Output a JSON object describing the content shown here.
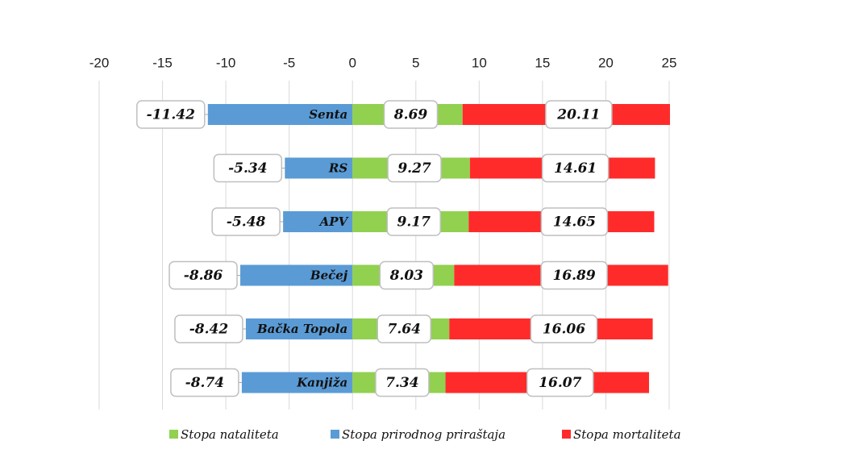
{
  "chart_data": {
    "type": "bar",
    "orientation": "horizontal",
    "categories": [
      "Senta",
      "RS",
      "APV",
      "Bečej",
      "Bačka Topola",
      "Kanjiža"
    ],
    "series": [
      {
        "name": "Stopa nataliteta",
        "color": "#92d050",
        "values": [
          8.69,
          9.27,
          9.17,
          8.03,
          7.64,
          7.34
        ]
      },
      {
        "name": "Stopa prirodnog priraštaja",
        "color": "#5b9bd5",
        "values": [
          -11.42,
          -5.34,
          -5.48,
          -8.86,
          -8.42,
          -8.74
        ]
      },
      {
        "name": "Stopa mortaliteta",
        "color": "#ff2b2b",
        "values": [
          20.11,
          14.61,
          14.65,
          16.89,
          16.06,
          16.07
        ]
      }
    ],
    "xlim": [
      -20,
      25
    ],
    "xticks": [
      -20,
      -15,
      -10,
      -5,
      0,
      5,
      10,
      15,
      20,
      25
    ],
    "grid": true,
    "legend": "bottom"
  }
}
